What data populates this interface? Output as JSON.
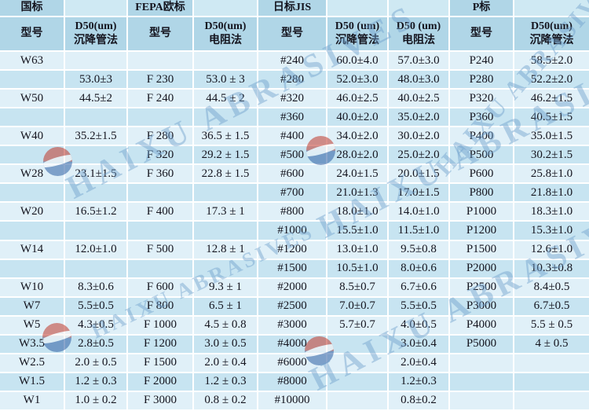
{
  "table": {
    "standards": [
      "国标",
      "FEPA欧标",
      "日标JIS",
      "P标"
    ],
    "header_row1": [
      "国标",
      "",
      "FEPA欧标",
      "",
      "日标JIS",
      "",
      "",
      "P标",
      ""
    ],
    "header_row2": [
      "型号",
      "D50(um)\n沉降管法",
      "型号",
      "D50(um)\n电阻法",
      "型号",
      "D50 (um)\n沉降管法",
      "D50 (um)\n电阻法",
      "型号",
      "D50(um)\n沉降管法"
    ],
    "rows": [
      [
        "W63",
        "",
        "",
        "",
        "#240",
        "60.0±4.0",
        "57.0±3.0",
        "P240",
        "58.5±2.0"
      ],
      [
        "",
        "53.0±3",
        "F 230",
        "53.0 ± 3",
        "#280",
        "52.0±3.0",
        "48.0±3.0",
        "P280",
        "52.2±2.0"
      ],
      [
        "W50",
        "44.5±2",
        "F 240",
        "44.5 ± 2",
        "#320",
        "46.0±2.5",
        "40.0±2.5",
        "P320",
        "46.2±1.5"
      ],
      [
        "",
        "",
        "",
        "",
        "#360",
        "40.0±2.0",
        "35.0±2.0",
        "P360",
        "40.5±1.5"
      ],
      [
        "W40",
        "35.2±1.5",
        "F 280",
        "36.5 ± 1.5",
        "#400",
        "34.0±2.0",
        "30.0±2.0",
        "P400",
        "35.0±1.5"
      ],
      [
        "",
        "",
        "F 320",
        "29.2 ± 1.5",
        "#500",
        "28.0±2.0",
        "25.0±2.0",
        "P500",
        "30.2±1.5"
      ],
      [
        "W28",
        "23.1±1.5",
        "F 360",
        "22.8 ± 1.5",
        "#600",
        "24.0±1.5",
        "20.0±1.5",
        "P600",
        "25.8±1.0"
      ],
      [
        "",
        "",
        "",
        "",
        "#700",
        "21.0±1.3",
        "17.0±1.5",
        "P800",
        "21.8±1.0"
      ],
      [
        "W20",
        "16.5±1.2",
        "F 400",
        "17.3 ± 1",
        "#800",
        "18.0±1.0",
        "14.0±1.0",
        "P1000",
        "18.3±1.0"
      ],
      [
        "",
        "",
        "",
        "",
        "#1000",
        "15.5±1.0",
        "11.5±1.0",
        "P1200",
        "15.3±1.0"
      ],
      [
        "W14",
        "12.0±1.0",
        "F 500",
        "12.8 ± 1",
        "#1200",
        "13.0±1.0",
        "9.5±0.8",
        "P1500",
        "12.6±1.0"
      ],
      [
        "",
        "",
        "",
        "",
        "#1500",
        "10.5±1.0",
        "8.0±0.6",
        "P2000",
        "10.3±0.8"
      ],
      [
        "W10",
        "8.3±0.6",
        "F 600",
        "9.3 ± 1",
        "#2000",
        "8.5±0.7",
        "6.7±0.6",
        "P2500",
        "8.4±0.5"
      ],
      [
        "W7",
        "5.5±0.5",
        "F 800",
        "6.5 ± 1",
        "#2500",
        "7.0±0.7",
        "5.5±0.5",
        "P3000",
        "6.7±0.5"
      ],
      [
        "W5",
        "4.3±0.5",
        "F 1000",
        "4.5 ± 0.8",
        "#3000",
        "5.7±0.7",
        "4.0±0.5",
        "P4000",
        "5.5 ± 0.5"
      ],
      [
        "W3.5",
        "2.8±0.5",
        "F 1200",
        "3.0 ± 0.5",
        "#4000",
        "",
        "3.0±0.4",
        "P5000",
        "4 ± 0.5"
      ],
      [
        "W2.5",
        "2.0 ± 0.5",
        "F 1500",
        "2.0 ± 0.4",
        "#6000",
        "",
        "2.0±0.4",
        "",
        ""
      ],
      [
        "W1.5",
        "1.2 ± 0.3",
        "F 2000",
        "1.2 ± 0.3",
        "#8000",
        "",
        "1.2±0.3",
        "",
        ""
      ],
      [
        "W1",
        "1.0 ± 0.2",
        "F 3000",
        "0.8 ± 0.2",
        "#10000",
        "",
        "0.8±0.2",
        "",
        ""
      ]
    ]
  },
  "watermark": {
    "text": "HAIXU ABRASIVES"
  },
  "logo": {
    "name": "haixu-ball-logo"
  },
  "colors": {
    "header_blue": "#b0d6e7",
    "header_light": "#cfe9f3",
    "row_light": "#e0f0f8",
    "row_blue": "#c7e4f1",
    "gridline": "#ffffff",
    "text": "#14141e",
    "watermark": "rgba(110,160,205,0.45)",
    "logo_red": "#c0392b",
    "logo_blue": "#2e5fa3"
  }
}
